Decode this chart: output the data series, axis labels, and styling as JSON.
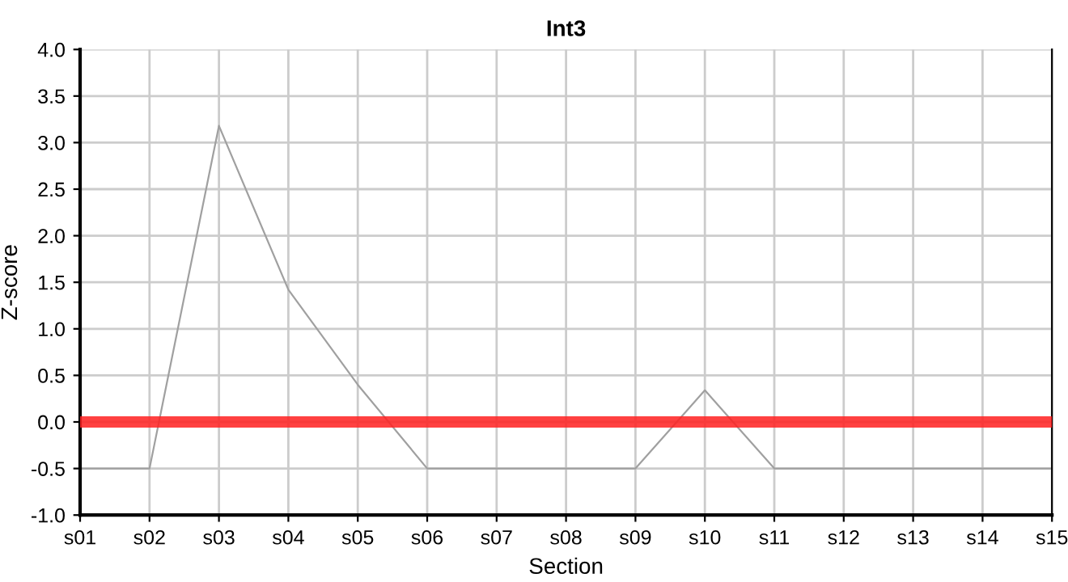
{
  "chart_data": {
    "type": "line",
    "title": "Int3",
    "xlabel": "Section",
    "ylabel": "Z-score",
    "categories": [
      "s01",
      "s02",
      "s03",
      "s04",
      "s05",
      "s06",
      "s07",
      "s08",
      "s09",
      "s10",
      "s11",
      "s12",
      "s13",
      "s14",
      "s15"
    ],
    "series": [
      {
        "color": "#a0a0a0",
        "values": [
          -0.5,
          -0.5,
          3.18,
          1.42,
          0.4,
          -0.5,
          -0.5,
          -0.5,
          -0.5,
          0.34,
          -0.5,
          -0.5,
          -0.5,
          -0.5,
          -0.5
        ]
      }
    ],
    "ylim": [
      -1.0,
      4.0
    ],
    "yticks": [
      {
        "value": -1.0,
        "label": "-1.0"
      },
      {
        "value": -0.5,
        "label": "-0.5"
      },
      {
        "value": 0,
        "label": "0.0"
      },
      {
        "value": 0.5,
        "label": "0.5"
      },
      {
        "value": 1.0,
        "label": "1.0"
      },
      {
        "value": 1.5,
        "label": "1.5"
      },
      {
        "value": 2.0,
        "label": "2.0"
      },
      {
        "value": 2.5,
        "label": "2.5"
      },
      {
        "value": 3.0,
        "label": "3.0"
      },
      {
        "value": 3.5,
        "label": "3.5"
      },
      {
        "value": 4.0,
        "label": "4.0"
      }
    ],
    "ref_lines": [
      {
        "axis": "y",
        "value": 0,
        "color": "#ff2020"
      }
    ],
    "grid": true
  }
}
